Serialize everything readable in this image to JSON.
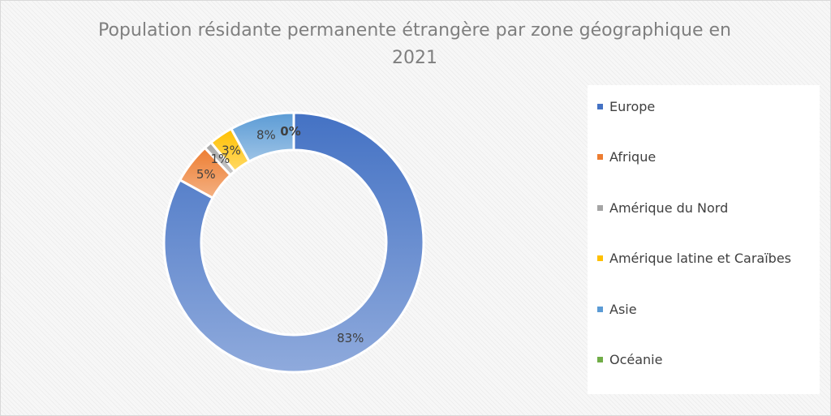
{
  "chart_data": {
    "type": "pie",
    "donut": true,
    "title": "Population résidante permanente étrangère par zone géographique en 2021",
    "categories": [
      "Europe",
      "Afrique",
      "Amérique du Nord",
      "Amérique latine et Caraïbes",
      "Asie",
      "Océanie"
    ],
    "values": [
      83,
      5,
      1,
      3,
      8,
      0
    ],
    "data_labels": [
      "83%",
      "5%",
      "1%",
      "3%",
      "8%",
      "0%"
    ],
    "unit": "%",
    "colors": [
      "#4472c4",
      "#ed7d31",
      "#a5a5a5",
      "#ffc000",
      "#5b9bd5",
      "#70ad47"
    ],
    "legend_position": "right"
  }
}
